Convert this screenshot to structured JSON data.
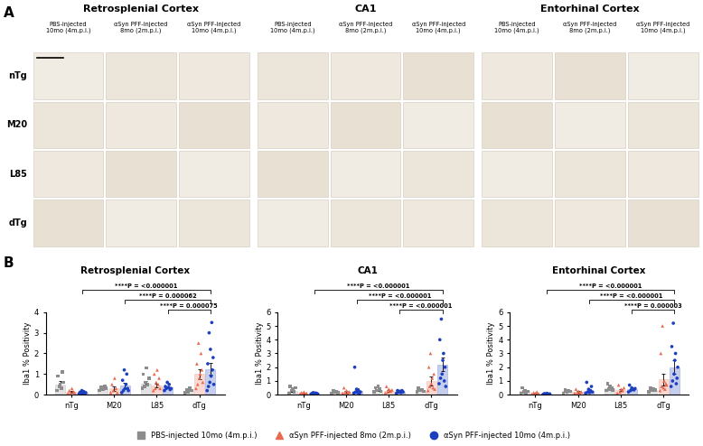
{
  "panel_a": {
    "label": "A",
    "rows": [
      "nTg",
      "M20",
      "L85",
      "dTg"
    ],
    "regions": [
      {
        "title": "Retrosplenial Cortex",
        "columns": [
          [
            "PBS-injected",
            "10mo (4m.p.i.)"
          ],
          [
            "αSyn PFF-injected",
            "8mo (2m.p.i.)"
          ],
          [
            "αSyn PFF-injected",
            "10mo (4m.p.i.)"
          ]
        ]
      },
      {
        "title": "CA1",
        "columns": [
          [
            "PBS-injected",
            "10mo (4m.p.i.)"
          ],
          [
            "αSyn PFF-injected",
            "8mo (2m.p.i.)"
          ],
          [
            "αSyn PFF-injected",
            "10mo (4m.p.i.)"
          ]
        ]
      },
      {
        "title": "Entorhinal Cortex",
        "columns": [
          [
            "PBS-injected",
            "10mo (4m.p.i.)"
          ],
          [
            "αSyn PFF-injected",
            "8mo (2m.p.i.)"
          ],
          [
            "αSyn PFF-injected",
            "10mo (4m.p.i.)"
          ]
        ]
      }
    ]
  },
  "panel_b": {
    "label": "B"
  },
  "chart_data": [
    {
      "type": "bar",
      "title": "Retrosplenial Cortex",
      "y_label": "Iba1 % Positivity",
      "categories": [
        "nTg",
        "M20",
        "L85",
        "dTg"
      ],
      "ylim": [
        0,
        4
      ],
      "yticks": [
        0,
        1,
        2,
        3,
        4
      ],
      "legend": "lower center",
      "series": [
        {
          "name": "PBS-injected 10mo (4m.p.i.)",
          "color": "#8c8c8c",
          "marker": "square",
          "values": [
            0.5,
            0.3,
            0.55,
            0.2
          ],
          "errors": [
            0.15,
            0.05,
            0.12,
            0.03
          ],
          "points": [
            [
              0.2,
              0.9,
              0.4,
              0.5,
              0.3,
              1.1,
              0.6
            ],
            [
              0.2,
              0.35,
              0.25,
              0.4,
              0.3
            ],
            [
              0.3,
              1.0,
              0.4,
              0.6,
              1.3,
              0.5,
              0.8
            ],
            [
              0.1,
              0.25,
              0.15,
              0.3,
              0.2
            ]
          ]
        },
        {
          "name": "αSyn PFF-injected 8mo (2m.p.i.)",
          "color": "#e9694f",
          "marker": "triangle",
          "values": [
            0.15,
            0.3,
            0.45,
            1.0
          ],
          "errors": [
            0.05,
            0.1,
            0.1,
            0.25
          ],
          "points": [
            [
              0.05,
              0.2,
              0.1,
              0.3,
              0.15,
              0.1
            ],
            [
              0.1,
              0.5,
              0.2,
              0.8,
              0.3,
              0.1
            ],
            [
              0.2,
              1.0,
              0.3,
              0.6,
              1.2,
              0.5,
              0.8,
              0.3
            ],
            [
              0.3,
              1.5,
              0.5,
              2.5,
              0.8,
              1.0,
              2.0,
              1.2,
              0.6
            ]
          ]
        },
        {
          "name": "αSyn PFF-injected 10mo (4m.p.i.)",
          "color": "#1c3fbf",
          "marker": "circle",
          "values": [
            0.1,
            0.45,
            0.35,
            1.25
          ],
          "errors": [
            0.03,
            0.12,
            0.05,
            0.3
          ],
          "points": [
            [
              0.05,
              0.12,
              0.08,
              0.2,
              0.1,
              0.15,
              0.05,
              0.1
            ],
            [
              0.1,
              0.7,
              0.2,
              1.2,
              0.3,
              0.5,
              1.0,
              0.3,
              0.2
            ],
            [
              0.2,
              0.4,
              0.3,
              0.6,
              0.35,
              0.5,
              0.25,
              0.3
            ],
            [
              0.2,
              1.5,
              0.4,
              3.0,
              0.6,
              2.2,
              0.9,
              3.5,
              1.2,
              1.8,
              0.5
            ]
          ]
        }
      ],
      "comparisons": [
        {
          "series": "αSyn PFF-injected 10mo (4m.p.i.)",
          "from": "nTg",
          "to": "dTg",
          "label": "****P = <0.000001"
        },
        {
          "series": "αSyn PFF-injected 10mo (4m.p.i.)",
          "from": "M20",
          "to": "dTg",
          "label": "****P = 0.000062"
        },
        {
          "series": "αSyn PFF-injected 10mo (4m.p.i.)",
          "from": "L85",
          "to": "dTg",
          "label": "****P = 0.000075"
        }
      ]
    },
    {
      "type": "bar",
      "title": "CA1",
      "y_label": "Iba1 % Positivity",
      "categories": [
        "nTg",
        "M20",
        "L85",
        "dTg"
      ],
      "ylim": [
        0,
        6
      ],
      "yticks": [
        0,
        1,
        2,
        3,
        4,
        5,
        6
      ],
      "series": [
        {
          "name": "PBS-injected 10mo (4m.p.i.)",
          "color": "#8c8c8c",
          "marker": "square",
          "values": [
            0.3,
            0.2,
            0.35,
            0.3
          ],
          "errors": [
            0.08,
            0.04,
            0.06,
            0.05
          ],
          "points": [
            [
              0.1,
              0.6,
              0.3,
              0.4,
              0.2,
              0.5
            ],
            [
              0.1,
              0.3,
              0.2,
              0.25,
              0.15
            ],
            [
              0.2,
              0.5,
              0.3,
              0.6,
              0.4,
              0.25
            ],
            [
              0.2,
              0.45,
              0.3,
              0.35,
              0.25
            ]
          ]
        },
        {
          "name": "αSyn PFF-injected 8mo (2m.p.i.)",
          "color": "#e9694f",
          "marker": "triangle",
          "values": [
            0.1,
            0.2,
            0.3,
            1.0
          ],
          "errors": [
            0.03,
            0.08,
            0.07,
            0.3
          ],
          "points": [
            [
              0.05,
              0.15,
              0.1,
              0.2,
              0.08,
              0.1
            ],
            [
              0.1,
              0.5,
              0.15,
              0.3,
              0.1,
              0.2
            ],
            [
              0.1,
              0.6,
              0.2,
              0.4,
              0.3,
              0.25,
              0.35
            ],
            [
              0.3,
              2.0,
              0.6,
              3.0,
              0.8,
              1.2,
              0.5,
              1.5,
              0.4
            ]
          ]
        },
        {
          "name": "αSyn PFF-injected 10mo (4m.p.i.)",
          "color": "#1c3fbf",
          "marker": "circle",
          "values": [
            0.1,
            0.3,
            0.2,
            2.2
          ],
          "errors": [
            0.03,
            0.15,
            0.04,
            0.5
          ],
          "points": [
            [
              0.05,
              0.1,
              0.15,
              0.08,
              0.12,
              0.1,
              0.05
            ],
            [
              0.1,
              2.0,
              0.2,
              0.4,
              0.15,
              0.3,
              0.1,
              0.2
            ],
            [
              0.1,
              0.3,
              0.2,
              0.25,
              0.15,
              0.3,
              0.2
            ],
            [
              0.8,
              4.0,
              1.2,
              5.5,
              1.5,
              2.5,
              3.0,
              1.0,
              2.0,
              0.6
            ]
          ]
        }
      ],
      "comparisons": [
        {
          "series": "αSyn PFF-injected 10mo (4m.p.i.)",
          "from": "nTg",
          "to": "dTg",
          "label": "****P = <0.000001"
        },
        {
          "series": "αSyn PFF-injected 10mo (4m.p.i.)",
          "from": "M20",
          "to": "dTg",
          "label": "****P = <0.000001"
        },
        {
          "series": "αSyn PFF-injected 10mo (4m.p.i.)",
          "from": "L85",
          "to": "dTg",
          "label": "****P = <0.000001"
        }
      ]
    },
    {
      "type": "bar",
      "title": "Entorhinal Cortex",
      "y_label": "Iba1 % Positivity",
      "categories": [
        "nTg",
        "M20",
        "L85",
        "dTg"
      ],
      "ylim": [
        0,
        6
      ],
      "yticks": [
        0,
        1,
        2,
        3,
        4,
        5,
        6
      ],
      "series": [
        {
          "name": "PBS-injected 10mo (4m.p.i.)",
          "color": "#8c8c8c",
          "marker": "square",
          "values": [
            0.25,
            0.25,
            0.5,
            0.35
          ],
          "errors": [
            0.07,
            0.05,
            0.08,
            0.05
          ],
          "points": [
            [
              0.1,
              0.5,
              0.2,
              0.3,
              0.15,
              0.25
            ],
            [
              0.1,
              0.35,
              0.2,
              0.3,
              0.25
            ],
            [
              0.3,
              0.8,
              0.4,
              0.6,
              0.5,
              0.35
            ],
            [
              0.2,
              0.45,
              0.3,
              0.4,
              0.35
            ]
          ]
        },
        {
          "name": "αSyn PFF-injected 8mo (2m.p.i.)",
          "color": "#e9694f",
          "marker": "triangle",
          "values": [
            0.1,
            0.2,
            0.35,
            1.1
          ],
          "errors": [
            0.03,
            0.06,
            0.08,
            0.4
          ],
          "points": [
            [
              0.05,
              0.15,
              0.1,
              0.2,
              0.08
            ],
            [
              0.1,
              0.4,
              0.15,
              0.25,
              0.1,
              0.2
            ],
            [
              0.1,
              0.7,
              0.2,
              0.4,
              0.3,
              0.5
            ],
            [
              0.3,
              3.0,
              0.6,
              5.0,
              0.5,
              1.0,
              0.4,
              0.8,
              0.7
            ]
          ]
        },
        {
          "name": "αSyn PFF-injected 10mo (4m.p.i.)",
          "color": "#1c3fbf",
          "marker": "circle",
          "values": [
            0.05,
            0.3,
            0.4,
            2.0
          ],
          "errors": [
            0.02,
            0.1,
            0.06,
            0.5
          ],
          "points": [
            [
              0.02,
              0.08,
              0.05,
              0.1,
              0.03,
              0.06
            ],
            [
              0.1,
              0.9,
              0.2,
              0.4,
              0.15,
              0.3,
              0.6,
              0.2
            ],
            [
              0.2,
              0.7,
              0.3,
              0.5,
              0.4,
              0.35,
              0.45
            ],
            [
              0.6,
              3.5,
              1.0,
              5.2,
              1.5,
              2.5,
              3.0,
              0.8,
              1.2,
              2.0
            ]
          ]
        }
      ],
      "comparisons": [
        {
          "series": "αSyn PFF-injected 10mo (4m.p.i.)",
          "from": "nTg",
          "to": "dTg",
          "label": "****P = <0.000001"
        },
        {
          "series": "αSyn PFF-injected 10mo (4m.p.i.)",
          "from": "M20",
          "to": "dTg",
          "label": "****P = <0.000001"
        },
        {
          "series": "αSyn PFF-injected 10mo (4m.p.i.)",
          "from": "L85",
          "to": "dTg",
          "label": "****P = 0.000003"
        }
      ]
    }
  ]
}
